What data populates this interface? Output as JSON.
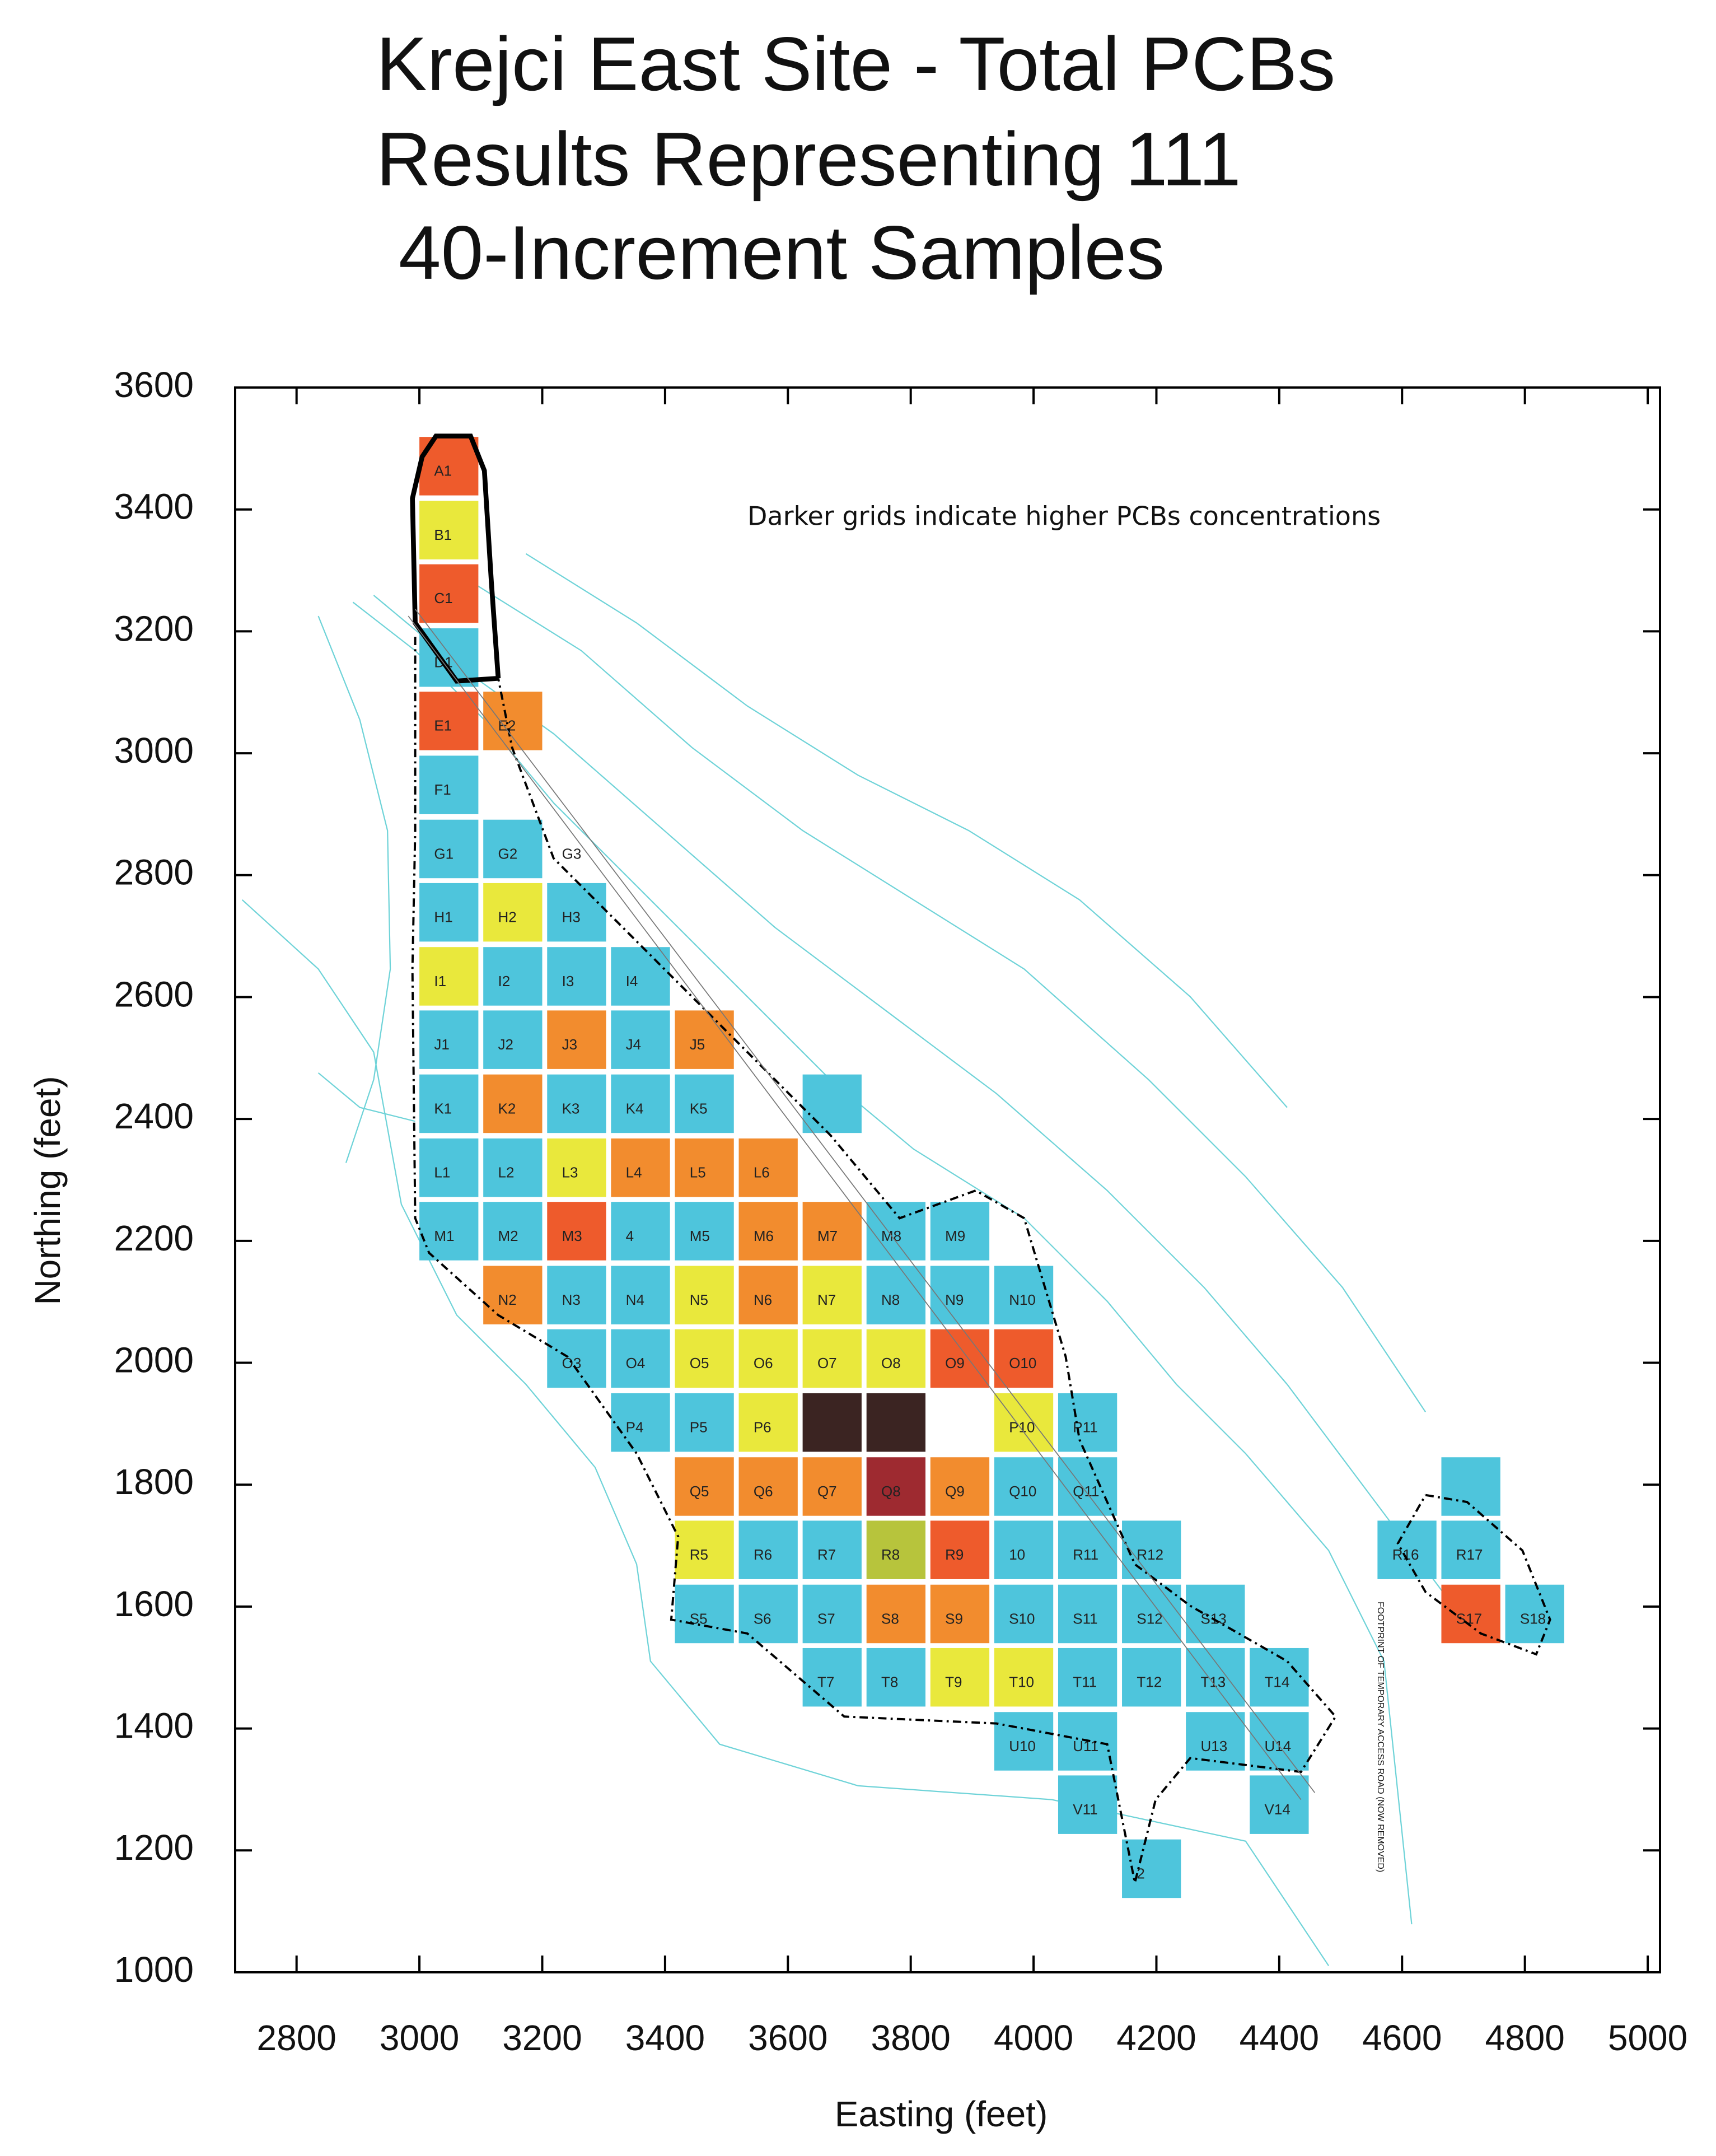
{
  "chart_data": {
    "type": "grid-map",
    "title_lines": [
      "Krejci East Site - Total PCBs",
      "Results Representing 111",
      "40-Increment Samples"
    ],
    "x_label": "Easting (feet)",
    "y_label": "Northing (feet)",
    "annotations": [
      "Darker  grids indicate higher PCBs concentrations",
      "FOOTPRINT OF TEMPORARY ACCESS ROAD (NOW REMOVED)"
    ],
    "xlim": [
      2700,
      5020
    ],
    "ylim": [
      1000,
      3600
    ],
    "xticks": [
      2800,
      3000,
      3200,
      3400,
      3600,
      3800,
      4000,
      4200,
      4400,
      4600,
      4800,
      5000
    ],
    "yticks": [
      1000,
      1200,
      1400,
      1600,
      1800,
      2000,
      2200,
      2400,
      2600,
      2800,
      3000,
      3200,
      3400,
      3600
    ],
    "cell_size": 96,
    "cells": [
      {
        "label": "A1",
        "x": 3000,
        "y": 3423,
        "color": "#ee5b2c"
      },
      {
        "label": "B1",
        "x": 3000,
        "y": 3318,
        "color": "#e9e83c"
      },
      {
        "label": "C1",
        "x": 3000,
        "y": 3214,
        "color": "#ee5b2c"
      },
      {
        "label": "D1",
        "x": 3000,
        "y": 3109,
        "color": "#4ec5dc"
      },
      {
        "label": "E1",
        "x": 3000,
        "y": 3005,
        "color": "#ee5b2c"
      },
      {
        "label": "E2",
        "x": 3104,
        "y": 3005,
        "color": "#f28c2e"
      },
      {
        "label": "F1",
        "x": 3000,
        "y": 2900,
        "color": "#4ec5dc"
      },
      {
        "label": "G1",
        "x": 3000,
        "y": 2795,
        "color": "#4ec5dc"
      },
      {
        "label": "G2",
        "x": 3104,
        "y": 2795,
        "color": "#4ec5dc"
      },
      {
        "label": "G3",
        "x": 3208,
        "y": 2795,
        "color": null
      },
      {
        "label": "H1",
        "x": 3000,
        "y": 2691,
        "color": "#4ec5dc"
      },
      {
        "label": "H2",
        "x": 3104,
        "y": 2691,
        "color": "#e9e83c"
      },
      {
        "label": "H3",
        "x": 3208,
        "y": 2691,
        "color": "#4ec5dc"
      },
      {
        "label": "I1",
        "x": 3000,
        "y": 2586,
        "color": "#e9e83c"
      },
      {
        "label": "I2",
        "x": 3104,
        "y": 2586,
        "color": "#4ec5dc"
      },
      {
        "label": "I3",
        "x": 3208,
        "y": 2586,
        "color": "#4ec5dc"
      },
      {
        "label": "I4",
        "x": 3312,
        "y": 2586,
        "color": "#4ec5dc"
      },
      {
        "label": "J1",
        "x": 3000,
        "y": 2482,
        "color": "#4ec5dc"
      },
      {
        "label": "J2",
        "x": 3104,
        "y": 2482,
        "color": "#4ec5dc"
      },
      {
        "label": "J3",
        "x": 3208,
        "y": 2482,
        "color": "#f28c2e"
      },
      {
        "label": "J4",
        "x": 3312,
        "y": 2482,
        "color": "#4ec5dc"
      },
      {
        "label": "J5",
        "x": 3416,
        "y": 2482,
        "color": "#f28c2e"
      },
      {
        "label": "K1",
        "x": 3000,
        "y": 2377,
        "color": "#4ec5dc"
      },
      {
        "label": "K2",
        "x": 3104,
        "y": 2377,
        "color": "#f28c2e"
      },
      {
        "label": "K3",
        "x": 3208,
        "y": 2377,
        "color": "#4ec5dc"
      },
      {
        "label": "K4",
        "x": 3312,
        "y": 2377,
        "color": "#4ec5dc"
      },
      {
        "label": "K5",
        "x": 3416,
        "y": 2377,
        "color": "#4ec5dc"
      },
      {
        "label": null,
        "x": 3624,
        "y": 2377,
        "color": "#4ec5dc"
      },
      {
        "label": "L1",
        "x": 3000,
        "y": 2272,
        "color": "#4ec5dc"
      },
      {
        "label": "L2",
        "x": 3104,
        "y": 2272,
        "color": "#4ec5dc"
      },
      {
        "label": "L3",
        "x": 3208,
        "y": 2272,
        "color": "#e9e83c"
      },
      {
        "label": "L4",
        "x": 3312,
        "y": 2272,
        "color": "#f28c2e"
      },
      {
        "label": "L5",
        "x": 3416,
        "y": 2272,
        "color": "#f28c2e"
      },
      {
        "label": "L6",
        "x": 3520,
        "y": 2272,
        "color": "#f28c2e"
      },
      {
        "label": "M1",
        "x": 3000,
        "y": 2168,
        "color": "#4ec5dc"
      },
      {
        "label": "M2",
        "x": 3104,
        "y": 2168,
        "color": "#4ec5dc"
      },
      {
        "label": "M3",
        "x": 3208,
        "y": 2168,
        "color": "#ee5b2c"
      },
      {
        "label": "4",
        "x": 3312,
        "y": 2168,
        "color": "#4ec5dc"
      },
      {
        "label": "M5",
        "x": 3416,
        "y": 2168,
        "color": "#4ec5dc"
      },
      {
        "label": "M6",
        "x": 3520,
        "y": 2168,
        "color": "#f28c2e"
      },
      {
        "label": "M7",
        "x": 3624,
        "y": 2168,
        "color": "#f28c2e"
      },
      {
        "label": "M8",
        "x": 3728,
        "y": 2168,
        "color": "#4ec5dc"
      },
      {
        "label": "M9",
        "x": 3832,
        "y": 2168,
        "color": "#4ec5dc"
      },
      {
        "label": "N2",
        "x": 3104,
        "y": 2063,
        "color": "#f28c2e"
      },
      {
        "label": "N3",
        "x": 3208,
        "y": 2063,
        "color": "#4ec5dc"
      },
      {
        "label": "N4",
        "x": 3312,
        "y": 2063,
        "color": "#4ec5dc"
      },
      {
        "label": "N5",
        "x": 3416,
        "y": 2063,
        "color": "#e9e83c"
      },
      {
        "label": "N6",
        "x": 3520,
        "y": 2063,
        "color": "#f28c2e"
      },
      {
        "label": "N7",
        "x": 3624,
        "y": 2063,
        "color": "#e9e83c"
      },
      {
        "label": "N8",
        "x": 3728,
        "y": 2063,
        "color": "#4ec5dc"
      },
      {
        "label": "N9",
        "x": 3832,
        "y": 2063,
        "color": "#4ec5dc"
      },
      {
        "label": "N10",
        "x": 3936,
        "y": 2063,
        "color": "#4ec5dc"
      },
      {
        "label": "O3",
        "x": 3208,
        "y": 1959,
        "color": "#4ec5dc"
      },
      {
        "label": "O4",
        "x": 3312,
        "y": 1959,
        "color": "#4ec5dc"
      },
      {
        "label": "O5",
        "x": 3416,
        "y": 1959,
        "color": "#e9e83c"
      },
      {
        "label": "O6",
        "x": 3520,
        "y": 1959,
        "color": "#e9e83c"
      },
      {
        "label": "O7",
        "x": 3624,
        "y": 1959,
        "color": "#e9e83c"
      },
      {
        "label": "O8",
        "x": 3728,
        "y": 1959,
        "color": "#e9e83c"
      },
      {
        "label": "O9",
        "x": 3832,
        "y": 1959,
        "color": "#ee5b2c"
      },
      {
        "label": "O10",
        "x": 3936,
        "y": 1959,
        "color": "#ee5b2c"
      },
      {
        "label": "P4",
        "x": 3312,
        "y": 1854,
        "color": "#4ec5dc"
      },
      {
        "label": "P5",
        "x": 3416,
        "y": 1854,
        "color": "#4ec5dc"
      },
      {
        "label": "P6",
        "x": 3520,
        "y": 1854,
        "color": "#e9e83c"
      },
      {
        "label": null,
        "x": 3624,
        "y": 1854,
        "color": "#3b2422"
      },
      {
        "label": null,
        "x": 3728,
        "y": 1854,
        "color": "#3b2422"
      },
      {
        "label": "P10",
        "x": 3936,
        "y": 1854,
        "color": "#e9e83c"
      },
      {
        "label": "P11",
        "x": 4040,
        "y": 1854,
        "color": "#4ec5dc"
      },
      {
        "label": "Q5",
        "x": 3416,
        "y": 1749,
        "color": "#f28c2e"
      },
      {
        "label": "Q6",
        "x": 3520,
        "y": 1749,
        "color": "#f28c2e"
      },
      {
        "label": "Q7",
        "x": 3624,
        "y": 1749,
        "color": "#f28c2e"
      },
      {
        "label": "Q8",
        "x": 3728,
        "y": 1749,
        "color": "#9e2a30"
      },
      {
        "label": "Q9",
        "x": 3832,
        "y": 1749,
        "color": "#f28c2e"
      },
      {
        "label": "Q10",
        "x": 3936,
        "y": 1749,
        "color": "#4ec5dc"
      },
      {
        "label": "Q11",
        "x": 4040,
        "y": 1749,
        "color": "#4ec5dc"
      },
      {
        "label": null,
        "x": 4664,
        "y": 1749,
        "color": "#4ec5dc"
      },
      {
        "label": "R5",
        "x": 3416,
        "y": 1645,
        "color": "#e9e83c"
      },
      {
        "label": "R6",
        "x": 3520,
        "y": 1645,
        "color": "#4ec5dc"
      },
      {
        "label": "R7",
        "x": 3624,
        "y": 1645,
        "color": "#4ec5dc"
      },
      {
        "label": "R8",
        "x": 3728,
        "y": 1645,
        "color": "#b7c43c"
      },
      {
        "label": "R9",
        "x": 3832,
        "y": 1645,
        "color": "#ee5b2c"
      },
      {
        "label": "10",
        "x": 3936,
        "y": 1645,
        "color": "#4ec5dc"
      },
      {
        "label": "R11",
        "x": 4040,
        "y": 1645,
        "color": "#4ec5dc"
      },
      {
        "label": "R12",
        "x": 4144,
        "y": 1645,
        "color": "#4ec5dc"
      },
      {
        "label": "R16",
        "x": 4560,
        "y": 1645,
        "color": "#4ec5dc"
      },
      {
        "label": "R17",
        "x": 4664,
        "y": 1645,
        "color": "#4ec5dc"
      },
      {
        "label": "S5",
        "x": 3416,
        "y": 1540,
        "color": "#4ec5dc"
      },
      {
        "label": "S6",
        "x": 3520,
        "y": 1540,
        "color": "#4ec5dc"
      },
      {
        "label": "S7",
        "x": 3624,
        "y": 1540,
        "color": "#4ec5dc"
      },
      {
        "label": "S8",
        "x": 3728,
        "y": 1540,
        "color": "#f28c2e"
      },
      {
        "label": "S9",
        "x": 3832,
        "y": 1540,
        "color": "#f28c2e"
      },
      {
        "label": "S10",
        "x": 3936,
        "y": 1540,
        "color": "#4ec5dc"
      },
      {
        "label": "S11",
        "x": 4040,
        "y": 1540,
        "color": "#4ec5dc"
      },
      {
        "label": "S12",
        "x": 4144,
        "y": 1540,
        "color": "#4ec5dc"
      },
      {
        "label": "S13",
        "x": 4248,
        "y": 1540,
        "color": "#4ec5dc"
      },
      {
        "label": "S17",
        "x": 4664,
        "y": 1540,
        "color": "#ee5b2c"
      },
      {
        "label": "S18",
        "x": 4768,
        "y": 1540,
        "color": "#4ec5dc"
      },
      {
        "label": "T7",
        "x": 3624,
        "y": 1436,
        "color": "#4ec5dc"
      },
      {
        "label": "T8",
        "x": 3728,
        "y": 1436,
        "color": "#4ec5dc"
      },
      {
        "label": "T9",
        "x": 3832,
        "y": 1436,
        "color": "#e9e83c"
      },
      {
        "label": "T10",
        "x": 3936,
        "y": 1436,
        "color": "#e9e83c"
      },
      {
        "label": "T11",
        "x": 4040,
        "y": 1436,
        "color": "#4ec5dc"
      },
      {
        "label": "T12",
        "x": 4144,
        "y": 1436,
        "color": "#4ec5dc"
      },
      {
        "label": "T13",
        "x": 4248,
        "y": 1436,
        "color": "#4ec5dc"
      },
      {
        "label": "T14",
        "x": 4352,
        "y": 1436,
        "color": "#4ec5dc"
      },
      {
        "label": "U10",
        "x": 3936,
        "y": 1331,
        "color": "#4ec5dc"
      },
      {
        "label": "U11",
        "x": 4040,
        "y": 1331,
        "color": "#4ec5dc"
      },
      {
        "label": "U13",
        "x": 4248,
        "y": 1331,
        "color": "#4ec5dc"
      },
      {
        "label": "U14",
        "x": 4352,
        "y": 1331,
        "color": "#4ec5dc"
      },
      {
        "label": "V11",
        "x": 4040,
        "y": 1227,
        "color": "#4ec5dc"
      },
      {
        "label": "V14",
        "x": 4352,
        "y": 1227,
        "color": "#4ec5dc"
      },
      {
        "label": "2",
        "x": 4144,
        "y": 1122,
        "color": "#4ec5dc"
      }
    ]
  }
}
